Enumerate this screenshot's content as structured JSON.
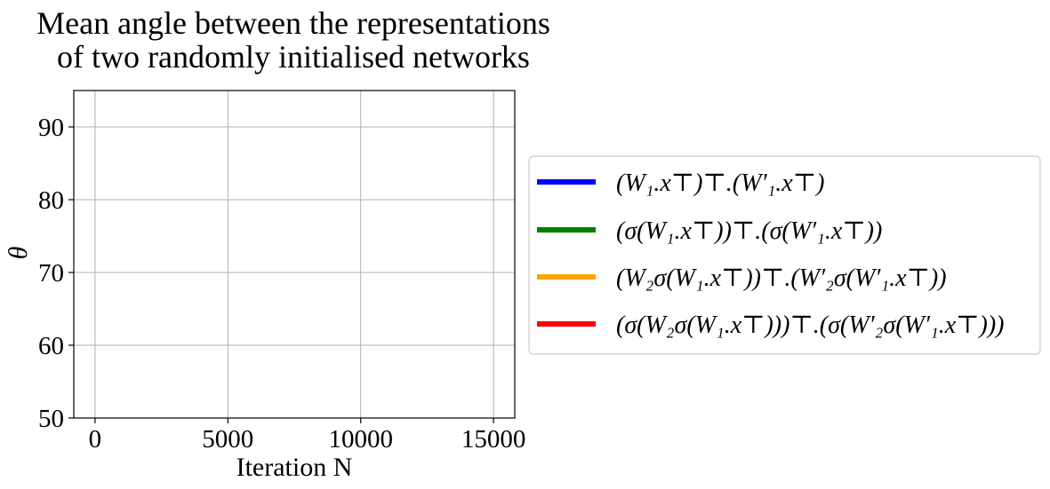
{
  "chart_data": {
    "type": "line",
    "title": [
      "Mean angle between the representations",
      "of  two randomly initialised networks"
    ],
    "xlabel": "Iteration N",
    "ylabel": "θ",
    "xlim": [
      -800,
      15800
    ],
    "ylim": [
      50,
      95
    ],
    "xticks": [
      0,
      5000,
      10000,
      15000
    ],
    "yticks": [
      50,
      60,
      70,
      80,
      90
    ],
    "grid": true,
    "legend_position": "right, outside plot",
    "series": [
      {
        "name": "(W₁.x⊤)⊤.(W′₁.x⊤)",
        "color": "#0000ff",
        "x": [],
        "y": []
      },
      {
        "name": "(σ(W₁.x⊤))⊤.(σ(W′₁.x⊤))",
        "color": "#008000",
        "x": [],
        "y": []
      },
      {
        "name": "(W₂σ(W₁.x⊤))⊤.(W′₂σ(W′₁.x⊤))",
        "color": "#ffa500",
        "x": [],
        "y": []
      },
      {
        "name": "(σ(W₂σ(W₁.x⊤)))⊤.(σ(W′₂σ(W′₁.x⊤)))",
        "color": "#ff0000",
        "x": [],
        "y": []
      }
    ]
  }
}
